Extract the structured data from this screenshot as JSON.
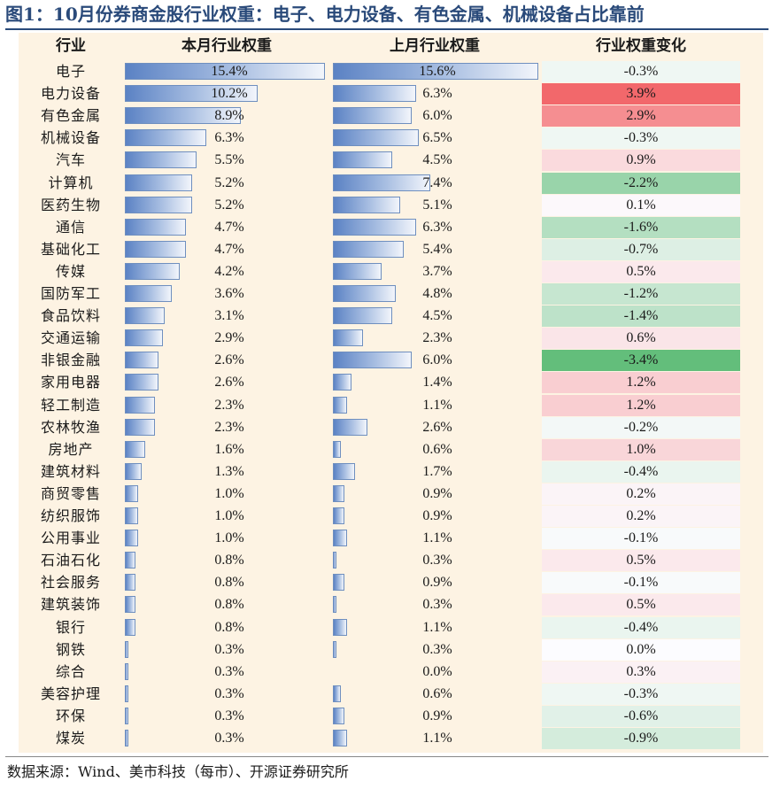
{
  "title": "图1：10月份券商金股行业权重：电子、电力设备、有色金属、机械设备占比靠前",
  "source": "数据来源：Wind、美市科技（每市）、开源证券研究所",
  "colors": {
    "positive_strong": "#f2686b",
    "negative_strong": "#63be7b",
    "neutral": "#fcfcff",
    "bar_dark": "#5b82c4",
    "bar_light": "#f2f5fb"
  },
  "chart_data": {
    "type": "table",
    "headers": [
      "行业",
      "本月行业权重",
      "上月行业权重",
      "行业权重变化"
    ],
    "rows": [
      {
        "industry": "电子",
        "current": "15.4%",
        "previous": "15.6%",
        "change": "-0.3%"
      },
      {
        "industry": "电力设备",
        "current": "10.2%",
        "previous": "6.3%",
        "change": "3.9%"
      },
      {
        "industry": "有色金属",
        "current": "8.9%",
        "previous": "6.0%",
        "change": "2.9%"
      },
      {
        "industry": "机械设备",
        "current": "6.3%",
        "previous": "6.5%",
        "change": "-0.3%"
      },
      {
        "industry": "汽车",
        "current": "5.5%",
        "previous": "4.5%",
        "change": "0.9%"
      },
      {
        "industry": "计算机",
        "current": "5.2%",
        "previous": "7.4%",
        "change": "-2.2%"
      },
      {
        "industry": "医药生物",
        "current": "5.2%",
        "previous": "5.1%",
        "change": "0.1%"
      },
      {
        "industry": "通信",
        "current": "4.7%",
        "previous": "6.3%",
        "change": "-1.6%"
      },
      {
        "industry": "基础化工",
        "current": "4.7%",
        "previous": "5.4%",
        "change": "-0.7%"
      },
      {
        "industry": "传媒",
        "current": "4.2%",
        "previous": "3.7%",
        "change": "0.5%"
      },
      {
        "industry": "国防军工",
        "current": "3.6%",
        "previous": "4.8%",
        "change": "-1.2%"
      },
      {
        "industry": "食品饮料",
        "current": "3.1%",
        "previous": "4.5%",
        "change": "-1.4%"
      },
      {
        "industry": "交通运输",
        "current": "2.9%",
        "previous": "2.3%",
        "change": "0.6%"
      },
      {
        "industry": "非银金融",
        "current": "2.6%",
        "previous": "6.0%",
        "change": "-3.4%"
      },
      {
        "industry": "家用电器",
        "current": "2.6%",
        "previous": "1.4%",
        "change": "1.2%"
      },
      {
        "industry": "轻工制造",
        "current": "2.3%",
        "previous": "1.1%",
        "change": "1.2%"
      },
      {
        "industry": "农林牧渔",
        "current": "2.3%",
        "previous": "2.6%",
        "change": "-0.2%"
      },
      {
        "industry": "房地产",
        "current": "1.6%",
        "previous": "0.6%",
        "change": "1.0%"
      },
      {
        "industry": "建筑材料",
        "current": "1.3%",
        "previous": "1.7%",
        "change": "-0.4%"
      },
      {
        "industry": "商贸零售",
        "current": "1.0%",
        "previous": "0.9%",
        "change": "0.2%"
      },
      {
        "industry": "纺织服饰",
        "current": "1.0%",
        "previous": "0.9%",
        "change": "0.2%"
      },
      {
        "industry": "公用事业",
        "current": "1.0%",
        "previous": "1.1%",
        "change": "-0.1%"
      },
      {
        "industry": "石油石化",
        "current": "0.8%",
        "previous": "0.3%",
        "change": "0.5%"
      },
      {
        "industry": "社会服务",
        "current": "0.8%",
        "previous": "0.9%",
        "change": "-0.1%"
      },
      {
        "industry": "建筑装饰",
        "current": "0.8%",
        "previous": "0.3%",
        "change": "0.5%"
      },
      {
        "industry": "银行",
        "current": "0.8%",
        "previous": "1.1%",
        "change": "-0.4%"
      },
      {
        "industry": "钢铁",
        "current": "0.3%",
        "previous": "0.3%",
        "change": "0.0%"
      },
      {
        "industry": "综合",
        "current": "0.3%",
        "previous": "0.0%",
        "change": "0.3%"
      },
      {
        "industry": "美容护理",
        "current": "0.3%",
        "previous": "0.6%",
        "change": "-0.3%"
      },
      {
        "industry": "环保",
        "current": "0.3%",
        "previous": "0.9%",
        "change": "-0.6%"
      },
      {
        "industry": "煤炭",
        "current": "0.3%",
        "previous": "1.1%",
        "change": "-0.9%"
      }
    ]
  }
}
